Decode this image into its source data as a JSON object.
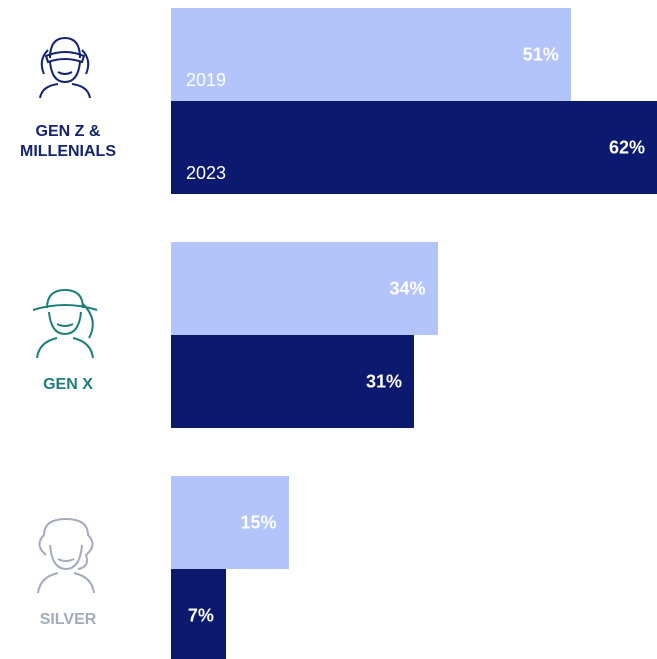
{
  "chart_data": {
    "type": "bar",
    "orientation": "horizontal",
    "categories": [
      "GEN Z & MILLENIALS",
      "GEN X",
      "SILVER"
    ],
    "category_colors": [
      "#14246e",
      "#1e7e7a",
      "#a3abbd"
    ],
    "series": [
      {
        "name": "2019",
        "color": "#b3c4fb",
        "values": [
          51,
          34,
          15
        ],
        "value_labels": [
          "51%",
          "34%",
          "15%"
        ]
      },
      {
        "name": "2023",
        "color": "#0b1a6e",
        "values": [
          62,
          31,
          7
        ],
        "value_labels": [
          "62%",
          "31%",
          "7%"
        ]
      }
    ]
  }
}
